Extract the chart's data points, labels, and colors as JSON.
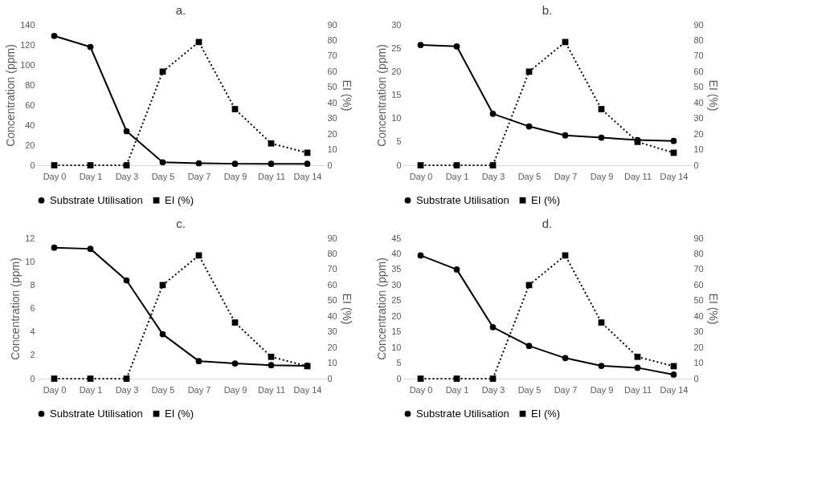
{
  "chart_data": [
    {
      "type": "line",
      "title": "a.",
      "categories": [
        "Day 0",
        "Day 1",
        "Day 3",
        "Day 5",
        "Day 7",
        "Day 9",
        "Day 11",
        "Day 14"
      ],
      "ylabel": "Concentration (ppm)",
      "y2label": "EI (%)",
      "ylim": [
        0,
        140
      ],
      "yticks": [
        0,
        20,
        40,
        60,
        80,
        100,
        120,
        140
      ],
      "y2lim": [
        0,
        90
      ],
      "y2ticks": [
        0,
        10,
        20,
        30,
        40,
        50,
        60,
        70,
        80,
        90
      ],
      "legend": "bottom",
      "series": [
        {
          "name": "Substrate Utilisation",
          "color": "#000000",
          "values": [
            129,
            118,
            34,
            3,
            2,
            1.5,
            1.5,
            1.5
          ],
          "marker": "circle",
          "line_style": "solid"
        },
        {
          "name": "EI (%)",
          "color": "#000000",
          "values": [
            0,
            0,
            0,
            60,
            79,
            36,
            14,
            8
          ],
          "axis": "y2",
          "marker": "square",
          "line_style": "dotted"
        }
      ]
    },
    {
      "type": "line",
      "title": "b.",
      "categories": [
        "Day 0",
        "Day 1",
        "Day 3",
        "Day 5",
        "Day 7",
        "Day 9",
        "Day 11",
        "Day 14"
      ],
      "ylabel": "Concentration  (ppm)",
      "y2label": "EI (%)",
      "ylim": [
        0,
        30
      ],
      "yticks": [
        0,
        5,
        10,
        15,
        20,
        25,
        30
      ],
      "y2lim": [
        0,
        90
      ],
      "y2ticks": [
        0,
        10,
        20,
        30,
        40,
        50,
        60,
        70,
        80,
        90
      ],
      "legend": "bottom",
      "series": [
        {
          "name": "Substrate Utilisation",
          "color": "#000000",
          "values": [
            25.7,
            25.4,
            11,
            8.3,
            6.4,
            5.9,
            5.4,
            5.2
          ],
          "marker": "circle",
          "line_style": "solid"
        },
        {
          "name": "EI (%)",
          "color": "#000000",
          "values": [
            0,
            0,
            0,
            60,
            79,
            36,
            15,
            8
          ],
          "axis": "y2",
          "marker": "square",
          "line_style": "dotted"
        }
      ]
    },
    {
      "type": "line",
      "title": "c.",
      "categories": [
        "Day 0",
        "Day 1",
        "Day 3",
        "Day 5",
        "Day 7",
        "Day 9",
        "Day 11",
        "Day 14"
      ],
      "ylabel": "Concentration  (ppm)",
      "y2label": "EI (%)",
      "ylim": [
        0,
        12
      ],
      "yticks": [
        0,
        2,
        4,
        6,
        8,
        10,
        12
      ],
      "y2lim": [
        0,
        90
      ],
      "y2ticks": [
        0,
        10,
        20,
        30,
        40,
        50,
        60,
        70,
        80,
        90
      ],
      "legend": "bottom",
      "series": [
        {
          "name": "Substrate Utilisation",
          "color": "#000000",
          "values": [
            11.2,
            11.1,
            8.4,
            3.8,
            1.5,
            1.3,
            1.15,
            1.1
          ],
          "marker": "circle",
          "line_style": "solid"
        },
        {
          "name": "EI (%)",
          "color": "#000000",
          "values": [
            0,
            0,
            0,
            60,
            79,
            36,
            14,
            8
          ],
          "axis": "y2",
          "marker": "square",
          "line_style": "dotted"
        }
      ]
    },
    {
      "type": "line",
      "title": "d.",
      "categories": [
        "Day 0",
        "Day 1",
        "Day 3",
        "Day 5",
        "Day 7",
        "Day 9",
        "Day 11",
        "Day 14"
      ],
      "ylabel": "Concentration  (ppm)",
      "y2label": "EI (%)",
      "ylim": [
        0,
        45
      ],
      "yticks": [
        0,
        5,
        10,
        15,
        20,
        25,
        30,
        35,
        40,
        45
      ],
      "y2lim": [
        0,
        90
      ],
      "y2ticks": [
        0,
        10,
        20,
        30,
        40,
        50,
        60,
        70,
        80,
        90
      ],
      "legend": "bottom",
      "series": [
        {
          "name": "Substrate Utilisation",
          "color": "#000000",
          "values": [
            39.5,
            35,
            16.5,
            10.5,
            6.6,
            4.1,
            3.5,
            1.3
          ],
          "marker": "circle",
          "line_style": "solid"
        },
        {
          "name": "EI (%)",
          "color": "#000000",
          "values": [
            0,
            0,
            0,
            60,
            79,
            36,
            14,
            8
          ],
          "axis": "y2",
          "marker": "square",
          "line_style": "dotted"
        }
      ]
    }
  ]
}
